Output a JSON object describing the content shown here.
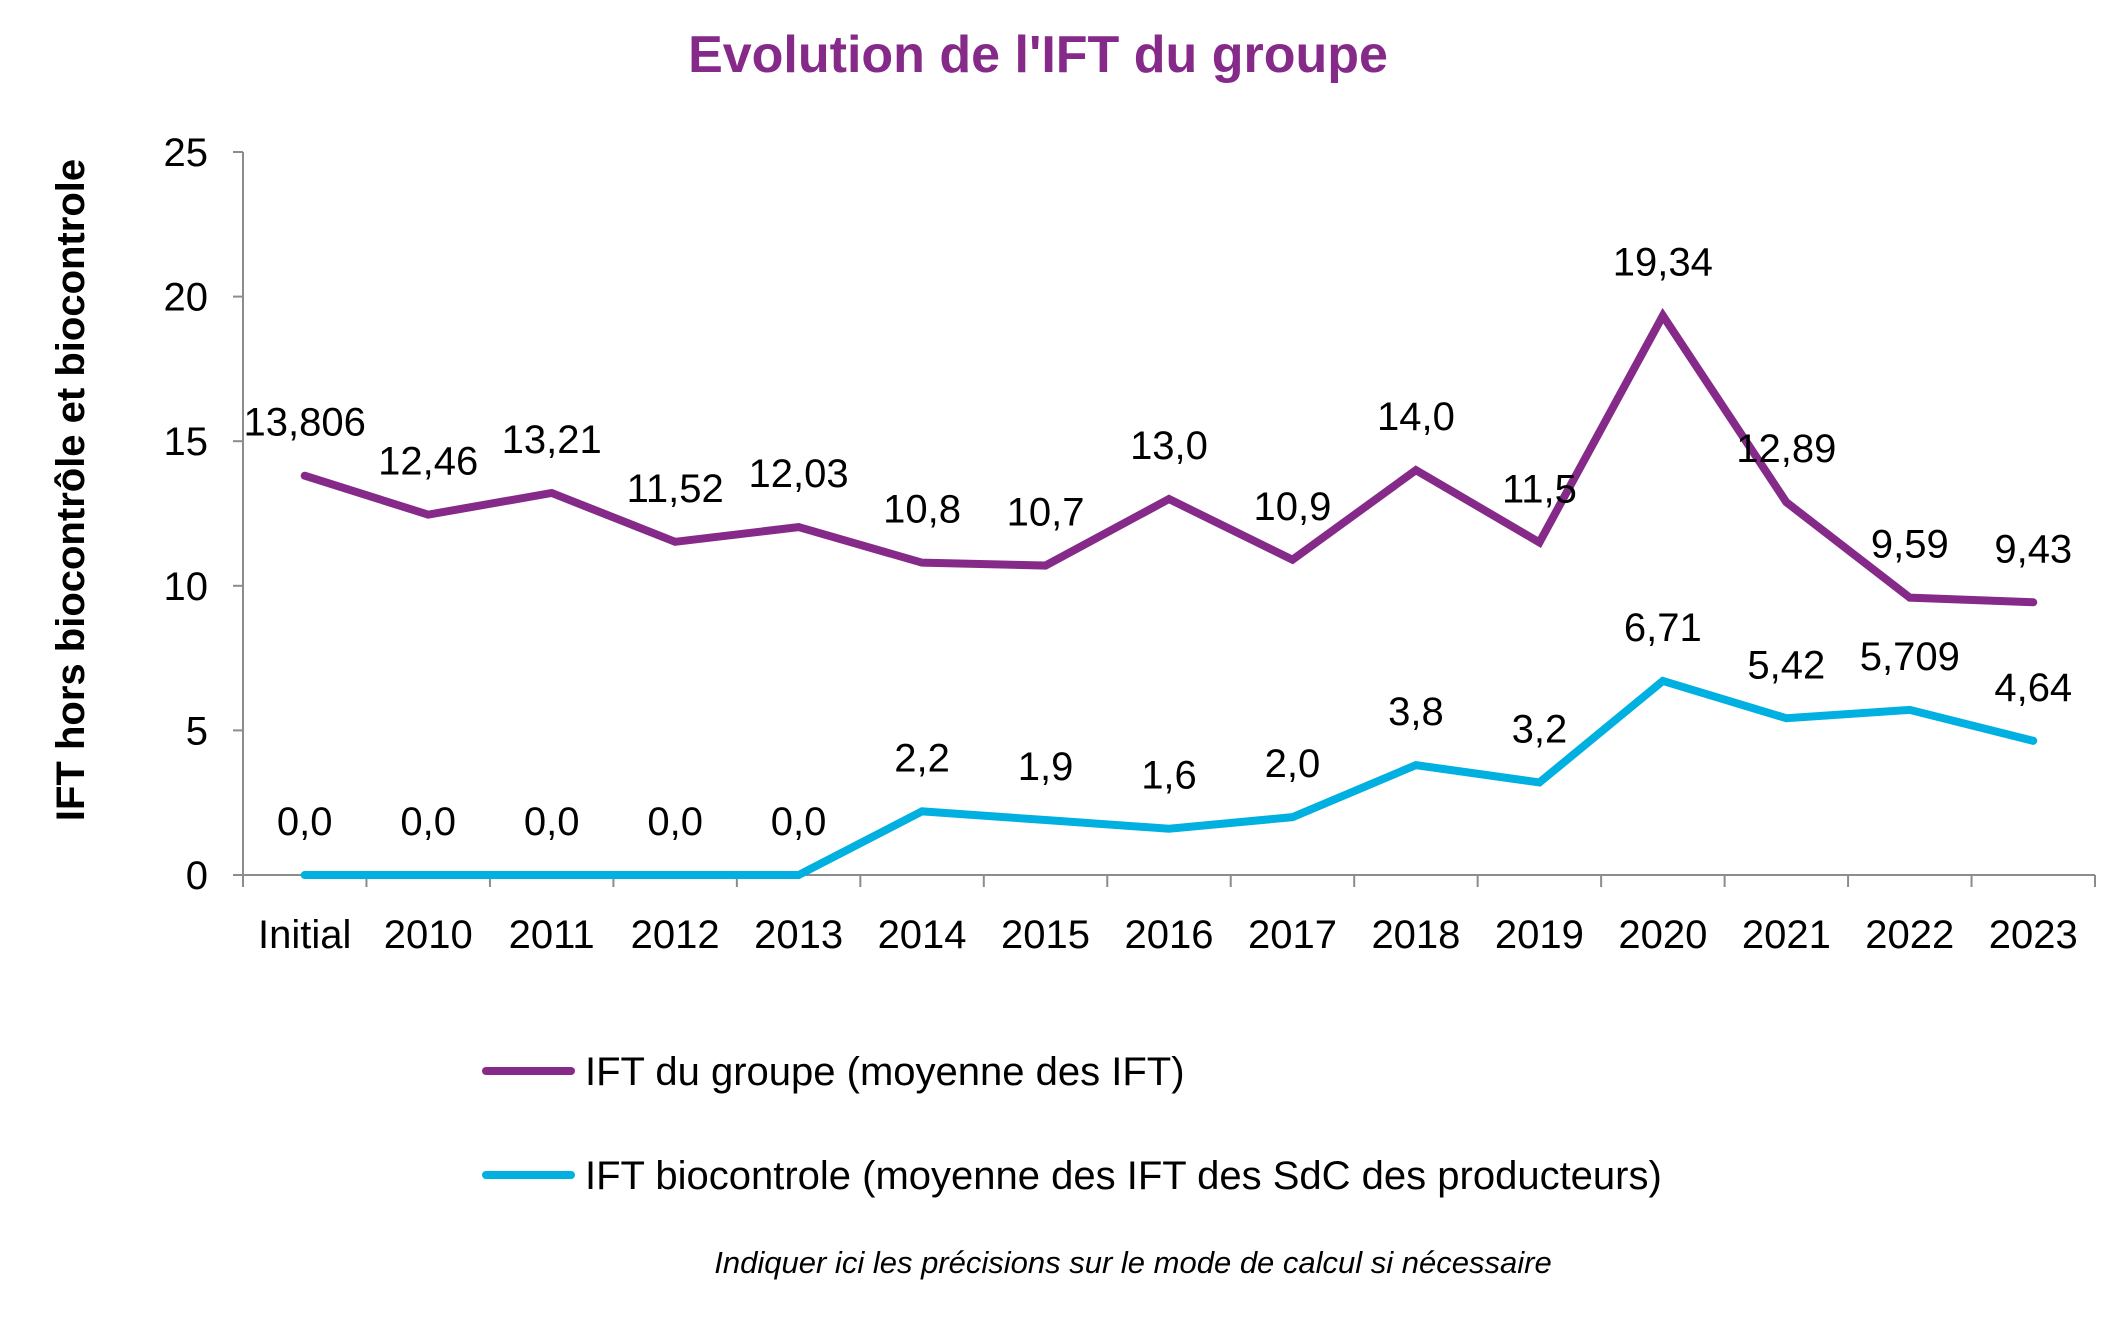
{
  "chart_data": {
    "type": "line",
    "title": "Evolution de l'IFT du groupe",
    "xlabel": "",
    "ylabel": "IFT  hors biocontrôle et biocontrole",
    "ylim": [
      0,
      25
    ],
    "yticks": [
      "0",
      "5",
      "10",
      "15",
      "20",
      "25"
    ],
    "ytick_values": [
      0,
      5,
      10,
      15,
      20,
      25
    ],
    "grid": false,
    "legend_position": "bottom",
    "categories": [
      "Initial",
      "2010",
      "2011",
      "2012",
      "2013",
      "2014",
      "2015",
      "2016",
      "2017",
      "2018",
      "2019",
      "2020",
      "2021",
      "2022",
      "2023"
    ],
    "series": [
      {
        "name": "IFT du groupe (moyenne des IFT)",
        "color": "#862a8a",
        "values": [
          13.806,
          12.46,
          13.21,
          11.52,
          12.03,
          10.8,
          10.7,
          13.0,
          10.9,
          14.0,
          11.5,
          19.34,
          12.89,
          9.59,
          9.43
        ],
        "labels": [
          "13,806",
          "12,46",
          "13,21",
          "11,52",
          "12,03",
          "10,8",
          "10,7",
          "13,0",
          "10,9",
          "14,0",
          "11,5",
          "19,34",
          "12,89",
          "9,59",
          "9,43"
        ]
      },
      {
        "name": "IFT biocontrole (moyenne des IFT des SdC des producteurs)",
        "color": "#00b0e0",
        "values": [
          0,
          0,
          0,
          0,
          0,
          2.2,
          1.9,
          1.6,
          2.0,
          3.8,
          3.2,
          6.71,
          5.42,
          5.709,
          4.64
        ],
        "labels": [
          "0,0",
          "0,0",
          "0,0",
          "0,0",
          "0,0",
          "2,2",
          "1,9",
          "1,6",
          "2,0",
          "3,8",
          "3,2",
          "6,71",
          "5,42",
          "5,709",
          "4,64"
        ]
      }
    ],
    "note": "Indiquer ici les précisions sur le mode de calcul si nécessaire"
  }
}
